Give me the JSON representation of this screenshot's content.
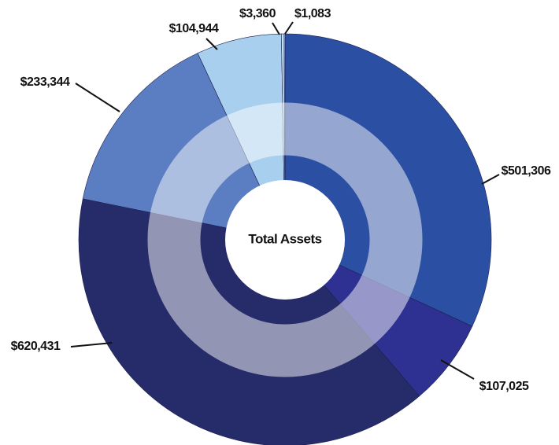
{
  "chart_data": {
    "type": "pie",
    "center_label": "Total Assets",
    "values": [
      501306,
      107025,
      620431,
      233344,
      104944,
      3360,
      1083
    ],
    "value_labels": [
      "$501,306",
      "$107,025",
      "$620,431",
      "$233,344",
      "$104,944",
      "$3,360",
      "$1,083"
    ],
    "colors": [
      "#2a4fa3",
      "#2e3192",
      "#262b69",
      "#5b7ec3",
      "#a9cfee",
      "#c6def3",
      "#e4ecf5"
    ]
  }
}
